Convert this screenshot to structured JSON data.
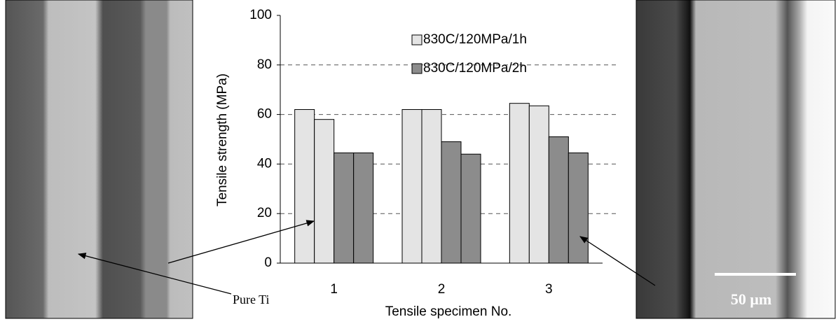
{
  "chart_data": {
    "type": "bar",
    "ylabel": "Tensile strength (MPa)",
    "xlabel": "Tensile specimen No.",
    "categories": [
      "1",
      "2",
      "3"
    ],
    "series": [
      {
        "name": "830C/120MPa/1h",
        "color": "#e4e4e4",
        "values": [
          [
            62,
            58
          ],
          [
            62,
            62
          ],
          [
            64.5,
            63.5
          ]
        ]
      },
      {
        "name": "830C/120MPa/2h",
        "color": "#8c8c8c",
        "values": [
          [
            44.5,
            44.5
          ],
          [
            49,
            44
          ],
          [
            51,
            44.5
          ]
        ]
      }
    ],
    "ylim": [
      0,
      100
    ],
    "yticks": [
      0,
      20,
      40,
      60,
      80,
      100
    ],
    "grid": true,
    "legend": "top-right",
    "annotations": [
      "Pure Ti",
      "50 μm"
    ]
  }
}
